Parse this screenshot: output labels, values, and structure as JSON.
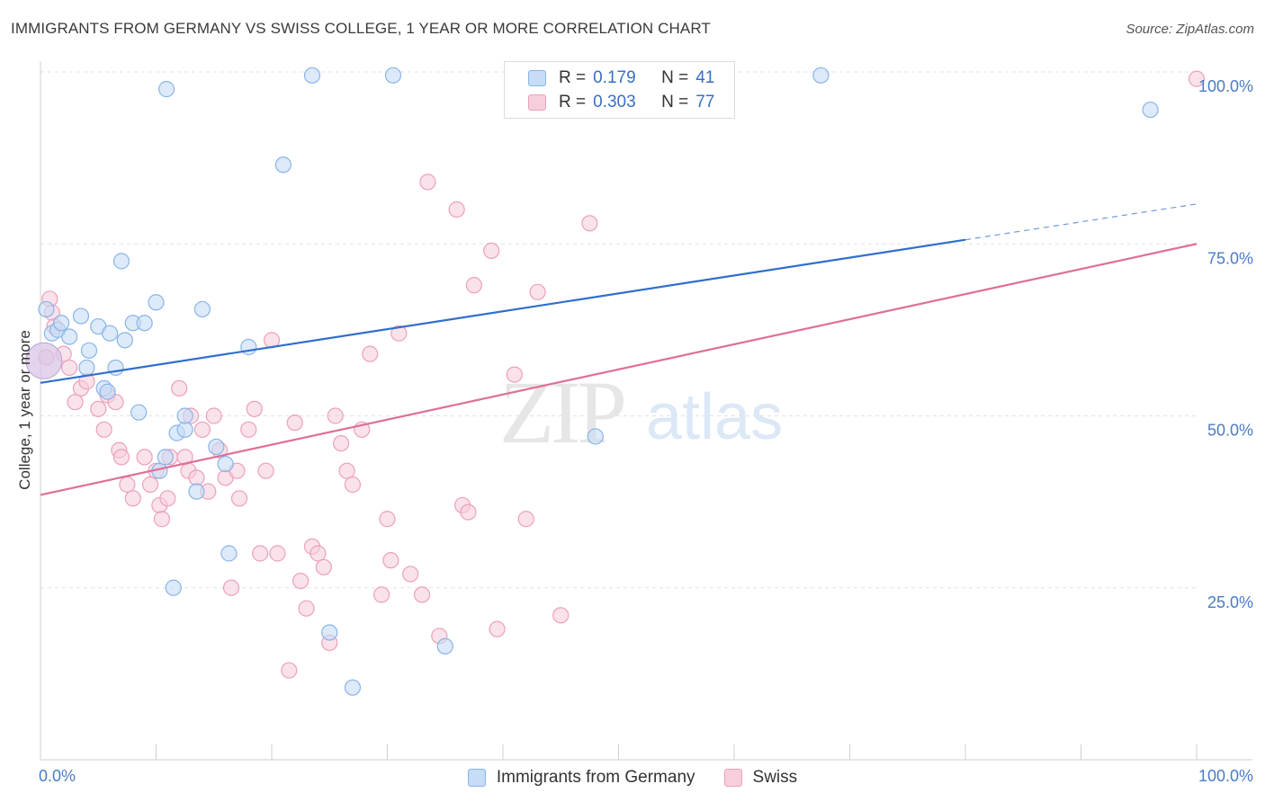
{
  "title": "IMMIGRANTS FROM GERMANY VS SWISS COLLEGE, 1 YEAR OR MORE CORRELATION CHART",
  "source": "Source: ZipAtlas.com",
  "watermark": {
    "zip": "ZIP",
    "atlas": "atlas"
  },
  "legend": {
    "r_label": "R =",
    "n_label": "N =",
    "rows": [
      {
        "r": "0.179",
        "n": "41"
      },
      {
        "r": "0.303",
        "n": "77"
      }
    ]
  },
  "chart_data": {
    "type": "scatter",
    "title": "IMMIGRANTS FROM GERMANY VS SWISS COLLEGE, 1 YEAR OR MORE CORRELATION CHART",
    "xlabel": "",
    "ylabel": "College, 1 year or more",
    "xlim": [
      0,
      100
    ],
    "ylim": [
      0,
      100
    ],
    "x_tick_labels": [
      "0.0%",
      "100.0%"
    ],
    "y_tick_labels": [
      "100.0%",
      "75.0%",
      "50.0%",
      "25.0%"
    ],
    "y_tick_values": [
      100,
      75,
      50,
      25
    ],
    "grid": true,
    "legend_position": "top-center",
    "series": [
      {
        "name": "Immigrants from Germany",
        "color": "#89b4e8",
        "fill": "#c7dcf5",
        "line_color": "#2f6fcc",
        "trend": {
          "x": [
            0,
            80,
            100
          ],
          "y": [
            54.8,
            75.6,
            80.8
          ],
          "solid_until": 80
        },
        "points": [
          [
            0.5,
            65.5
          ],
          [
            1,
            62
          ],
          [
            1.5,
            62.5
          ],
          [
            1.8,
            63.5
          ],
          [
            2.5,
            61.5
          ],
          [
            3.5,
            64.5
          ],
          [
            4,
            57
          ],
          [
            4.2,
            59.5
          ],
          [
            5,
            63
          ],
          [
            5.5,
            54
          ],
          [
            5.8,
            53.5
          ],
          [
            6,
            62
          ],
          [
            6.5,
            57
          ],
          [
            7,
            72.5
          ],
          [
            7.3,
            61
          ],
          [
            8,
            63.5
          ],
          [
            8.5,
            50.5
          ],
          [
            9,
            63.5
          ],
          [
            10,
            66.5
          ],
          [
            10.3,
            42
          ],
          [
            10.8,
            44
          ],
          [
            10.9,
            97.5
          ],
          [
            11.5,
            25
          ],
          [
            11.8,
            47.5
          ],
          [
            12.5,
            48
          ],
          [
            12.5,
            50
          ],
          [
            13.5,
            39
          ],
          [
            14,
            65.5
          ],
          [
            15.2,
            45.5
          ],
          [
            16,
            43
          ],
          [
            16.3,
            30
          ],
          [
            18,
            60
          ],
          [
            21,
            86.5
          ],
          [
            23.5,
            99.5
          ],
          [
            25,
            18.5
          ],
          [
            27,
            10.5
          ],
          [
            30.5,
            99.5
          ],
          [
            35,
            16.5
          ],
          [
            48,
            47
          ],
          [
            67.5,
            99.5
          ],
          [
            96,
            94.5
          ]
        ]
      },
      {
        "name": "Swiss",
        "color": "#eca0bb",
        "fill": "#f7cedc",
        "line_color": "#de6f97",
        "trend": {
          "x": [
            0,
            100
          ],
          "y": [
            38.5,
            75.0
          ]
        },
        "points": [
          [
            0.5,
            58.5
          ],
          [
            0.8,
            67
          ],
          [
            1,
            65
          ],
          [
            1.2,
            63
          ],
          [
            2,
            59
          ],
          [
            2.5,
            57
          ],
          [
            3,
            52
          ],
          [
            3.5,
            54
          ],
          [
            4,
            55
          ],
          [
            5,
            51
          ],
          [
            5.5,
            48
          ],
          [
            5.8,
            53
          ],
          [
            6.5,
            52
          ],
          [
            6.8,
            45
          ],
          [
            7,
            44
          ],
          [
            7.5,
            40
          ],
          [
            8,
            38
          ],
          [
            9,
            44
          ],
          [
            9.5,
            40
          ],
          [
            10,
            42
          ],
          [
            10.3,
            37
          ],
          [
            10.5,
            35
          ],
          [
            11,
            38
          ],
          [
            11.2,
            44
          ],
          [
            12,
            54
          ],
          [
            12.5,
            44
          ],
          [
            12.8,
            42
          ],
          [
            13,
            50
          ],
          [
            13.5,
            41
          ],
          [
            14,
            48
          ],
          [
            14.5,
            39
          ],
          [
            15,
            50
          ],
          [
            15.5,
            45
          ],
          [
            16,
            41
          ],
          [
            16.5,
            25
          ],
          [
            17,
            42
          ],
          [
            17.2,
            38
          ],
          [
            18,
            48
          ],
          [
            18.5,
            51
          ],
          [
            19,
            30
          ],
          [
            19.5,
            42
          ],
          [
            20,
            61
          ],
          [
            20.5,
            30
          ],
          [
            21.5,
            13
          ],
          [
            22,
            49
          ],
          [
            22.5,
            26
          ],
          [
            23,
            22
          ],
          [
            23.5,
            31
          ],
          [
            24,
            30
          ],
          [
            24.5,
            28
          ],
          [
            25,
            17
          ],
          [
            25.5,
            50
          ],
          [
            26,
            46
          ],
          [
            26.5,
            42
          ],
          [
            27,
            40
          ],
          [
            27.8,
            48
          ],
          [
            28.5,
            59
          ],
          [
            29.5,
            24
          ],
          [
            30,
            35
          ],
          [
            30.3,
            29
          ],
          [
            31,
            62
          ],
          [
            32,
            27
          ],
          [
            33,
            24
          ],
          [
            33.5,
            84
          ],
          [
            34.5,
            18
          ],
          [
            36,
            80
          ],
          [
            36.5,
            37
          ],
          [
            37,
            36
          ],
          [
            37.5,
            69
          ],
          [
            39,
            74
          ],
          [
            39.5,
            19
          ],
          [
            41,
            56
          ],
          [
            42,
            35
          ],
          [
            43,
            68
          ],
          [
            45,
            21
          ],
          [
            47.5,
            78
          ],
          [
            100,
            99
          ]
        ]
      }
    ]
  },
  "bottom_legend": [
    "Immigrants from Germany",
    "Swiss"
  ]
}
